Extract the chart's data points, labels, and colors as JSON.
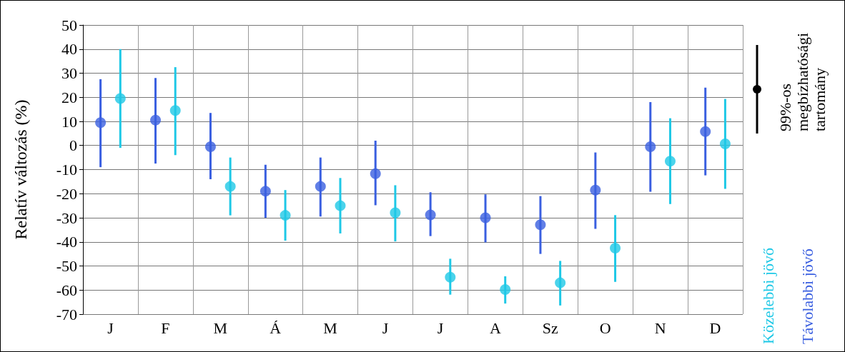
{
  "chart_data": {
    "type": "scatter",
    "ylabel": "Relatív változás (%)",
    "categories": [
      "J",
      "F",
      "M",
      "Á",
      "M",
      "J",
      "J",
      "A",
      "Sz",
      "O",
      "N",
      "D"
    ],
    "series": [
      {
        "name": "Távolabbi jövő",
        "color": "#3a5fe0",
        "values": [
          9.5,
          10.5,
          -0.5,
          -19,
          -17,
          -11.7,
          -28.8,
          -30,
          -32.9,
          -18.5,
          -0.5,
          5.8
        ],
        "errors": [
          [
            -9,
            27.5
          ],
          [
            -7.5,
            28
          ],
          [
            -14,
            13.5
          ],
          [
            -30,
            -8
          ],
          [
            -29.5,
            -5
          ],
          [
            -24.8,
            2
          ],
          [
            -37.6,
            -19.4
          ],
          [
            -40.2,
            -20.3
          ],
          [
            -45,
            -21
          ],
          [
            -34.6,
            -2.9
          ],
          [
            -19.2,
            18
          ],
          [
            -12.4,
            24
          ]
        ]
      },
      {
        "name": "Közelebbi jövő",
        "color": "#1ec8e6",
        "values": [
          19.5,
          14.5,
          -17,
          -29,
          -25,
          -27.9,
          -54.7,
          -59.8,
          -57,
          -42.6,
          -6.5,
          0.7
        ],
        "errors": [
          [
            -1,
            40
          ],
          [
            -4,
            32.5
          ],
          [
            -29,
            -5
          ],
          [
            -39.5,
            -18.5
          ],
          [
            -36.5,
            -13.5
          ],
          [
            -39.8,
            -16.5
          ],
          [
            -61.9,
            -47
          ],
          [
            -65.6,
            -54.3
          ],
          [
            -66.4,
            -47.9
          ],
          [
            -56.6,
            -28.9
          ],
          [
            -24.3,
            11.3
          ],
          [
            -18,
            19.3
          ]
        ]
      }
    ],
    "ylim": [
      -70,
      50
    ],
    "yticks": [
      -70,
      -60,
      -50,
      -40,
      -30,
      -20,
      -10,
      0,
      10,
      20,
      30,
      40,
      50
    ],
    "grid": true,
    "legend": "right",
    "marker": "circle",
    "annotations": [
      "99%-os megbízhatósági tartomány"
    ]
  }
}
